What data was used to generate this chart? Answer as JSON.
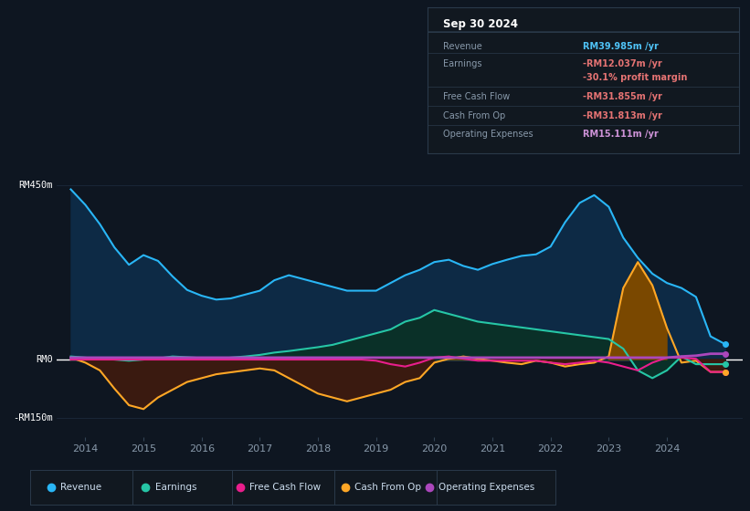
{
  "bg_color": "#0e1621",
  "plot_bg_color": "#0e1621",
  "grid_color": "#1e2d40",
  "ylim": [
    -200,
    520
  ],
  "yticks": [
    -150,
    0,
    450
  ],
  "ytick_labels": [
    "-RM150m",
    "RM0",
    "RM450m"
  ],
  "xlim_start": 2013.5,
  "xlim_end": 2025.3,
  "xticks": [
    2014,
    2015,
    2016,
    2017,
    2018,
    2019,
    2020,
    2021,
    2022,
    2023,
    2024
  ],
  "legend_items": [
    {
      "label": "Revenue",
      "color": "#29b6f6"
    },
    {
      "label": "Earnings",
      "color": "#26c6a6"
    },
    {
      "label": "Free Cash Flow",
      "color": "#e91e8c"
    },
    {
      "label": "Cash From Op",
      "color": "#ffa726"
    },
    {
      "label": "Operating Expenses",
      "color": "#ab47bc"
    }
  ],
  "info_box": {
    "date": "Sep 30 2024",
    "rows": [
      {
        "label": "Revenue",
        "value": "RM39.985m /yr",
        "value_color": "#4fc3f7"
      },
      {
        "label": "Earnings",
        "value": "-RM12.037m /yr",
        "value_color": "#e57373"
      },
      {
        "label": "",
        "value": "-30.1% profit margin",
        "value_color": "#e57373"
      },
      {
        "label": "Free Cash Flow",
        "value": "-RM31.855m /yr",
        "value_color": "#e57373"
      },
      {
        "label": "Cash From Op",
        "value": "-RM31.813m /yr",
        "value_color": "#e57373"
      },
      {
        "label": "Operating Expenses",
        "value": "RM15.111m /yr",
        "value_color": "#ce93d8"
      }
    ]
  },
  "revenue_x": [
    2013.75,
    2014.0,
    2014.25,
    2014.5,
    2014.75,
    2015.0,
    2015.25,
    2015.5,
    2015.75,
    2016.0,
    2016.25,
    2016.5,
    2016.75,
    2017.0,
    2017.25,
    2017.5,
    2017.75,
    2018.0,
    2018.25,
    2018.5,
    2018.75,
    2019.0,
    2019.25,
    2019.5,
    2019.75,
    2020.0,
    2020.25,
    2020.5,
    2020.75,
    2021.0,
    2021.25,
    2021.5,
    2021.75,
    2022.0,
    2022.25,
    2022.5,
    2022.75,
    2023.0,
    2023.25,
    2023.5,
    2023.75,
    2024.0,
    2024.25,
    2024.5,
    2024.75,
    2025.0
  ],
  "revenue_y": [
    440,
    400,
    350,
    290,
    245,
    270,
    255,
    215,
    180,
    165,
    155,
    158,
    168,
    178,
    205,
    218,
    208,
    198,
    188,
    178,
    178,
    178,
    198,
    218,
    232,
    252,
    258,
    242,
    232,
    247,
    258,
    268,
    272,
    292,
    355,
    405,
    425,
    395,
    315,
    263,
    222,
    198,
    185,
    162,
    60,
    40
  ],
  "earnings_x": [
    2013.75,
    2014.0,
    2014.25,
    2014.5,
    2014.75,
    2015.0,
    2015.25,
    2015.5,
    2015.75,
    2016.0,
    2016.25,
    2016.5,
    2016.75,
    2017.0,
    2017.25,
    2017.5,
    2017.75,
    2018.0,
    2018.25,
    2018.5,
    2018.75,
    2019.0,
    2019.25,
    2019.5,
    2019.75,
    2020.0,
    2020.25,
    2020.5,
    2020.75,
    2021.0,
    2021.25,
    2021.5,
    2021.75,
    2022.0,
    2022.25,
    2022.5,
    2022.75,
    2023.0,
    2023.25,
    2023.5,
    2023.75,
    2024.0,
    2024.25,
    2024.5,
    2024.75,
    2025.0
  ],
  "earnings_y": [
    8,
    5,
    2,
    0,
    -3,
    0,
    3,
    8,
    6,
    4,
    2,
    5,
    8,
    12,
    18,
    22,
    27,
    32,
    38,
    48,
    58,
    68,
    78,
    98,
    108,
    128,
    118,
    108,
    98,
    93,
    88,
    83,
    78,
    73,
    68,
    63,
    58,
    53,
    28,
    -28,
    -48,
    -28,
    8,
    -12,
    -12,
    -12
  ],
  "cfo_x": [
    2013.75,
    2014.0,
    2014.25,
    2014.5,
    2014.75,
    2015.0,
    2015.25,
    2015.5,
    2015.75,
    2016.0,
    2016.25,
    2016.5,
    2016.75,
    2017.0,
    2017.25,
    2017.5,
    2017.75,
    2018.0,
    2018.25,
    2018.5,
    2018.75,
    2019.0,
    2019.25,
    2019.5,
    2019.75,
    2020.0,
    2020.25,
    2020.5,
    2020.75,
    2021.0,
    2021.25,
    2021.5,
    2021.75,
    2022.0,
    2022.25,
    2022.5,
    2022.75,
    2023.0,
    2023.25,
    2023.5,
    2023.75,
    2024.0,
    2024.25,
    2024.5,
    2024.75,
    2025.0
  ],
  "cfo_y": [
    5,
    -8,
    -28,
    -75,
    -118,
    -128,
    -98,
    -78,
    -58,
    -48,
    -38,
    -33,
    -28,
    -23,
    -28,
    -48,
    -68,
    -88,
    -98,
    -108,
    -98,
    -88,
    -78,
    -58,
    -48,
    -8,
    2,
    8,
    2,
    -3,
    -8,
    -12,
    -3,
    -8,
    -18,
    -12,
    -8,
    8,
    185,
    252,
    192,
    82,
    -8,
    -3,
    -32,
    -32
  ],
  "fcf_x": [
    2013.75,
    2014.0,
    2014.25,
    2014.5,
    2014.75,
    2015.0,
    2015.25,
    2015.5,
    2015.75,
    2016.0,
    2016.25,
    2016.5,
    2016.75,
    2017.0,
    2017.25,
    2017.5,
    2017.75,
    2018.0,
    2018.25,
    2018.5,
    2018.75,
    2019.0,
    2019.25,
    2019.5,
    2019.75,
    2020.0,
    2020.25,
    2020.5,
    2020.75,
    2021.0,
    2021.25,
    2021.5,
    2021.75,
    2022.0,
    2022.25,
    2022.5,
    2022.75,
    2023.0,
    2023.25,
    2023.5,
    2023.75,
    2024.0,
    2024.25,
    2024.5,
    2024.75,
    2025.0
  ],
  "fcf_y": [
    0,
    0,
    0,
    0,
    0,
    0,
    0,
    0,
    0,
    0,
    0,
    0,
    0,
    0,
    0,
    0,
    0,
    0,
    0,
    0,
    0,
    -3,
    -12,
    -18,
    -8,
    5,
    8,
    2,
    -3,
    -3,
    -3,
    -3,
    -3,
    -8,
    -12,
    -8,
    -3,
    -8,
    -18,
    -28,
    -8,
    5,
    5,
    2,
    -32,
    -32
  ],
  "opex_x": [
    2013.75,
    2014.0,
    2014.25,
    2014.5,
    2014.75,
    2015.0,
    2015.25,
    2015.5,
    2015.75,
    2016.0,
    2016.25,
    2016.5,
    2016.75,
    2017.0,
    2017.25,
    2017.5,
    2017.75,
    2018.0,
    2018.25,
    2018.5,
    2018.75,
    2019.0,
    2019.25,
    2019.5,
    2019.75,
    2020.0,
    2020.25,
    2020.5,
    2020.75,
    2021.0,
    2021.25,
    2021.5,
    2021.75,
    2022.0,
    2022.25,
    2022.5,
    2022.75,
    2023.0,
    2023.25,
    2023.5,
    2023.75,
    2024.0,
    2024.25,
    2024.5,
    2024.75,
    2025.0
  ],
  "opex_y": [
    5,
    5,
    5,
    5,
    5,
    5,
    5,
    5,
    5,
    5,
    5,
    5,
    5,
    5,
    5,
    5,
    5,
    5,
    5,
    5,
    5,
    5,
    5,
    5,
    5,
    5,
    5,
    5,
    5,
    5,
    5,
    5,
    5,
    5,
    5,
    5,
    5,
    5,
    5,
    5,
    5,
    5,
    8,
    10,
    15,
    15
  ],
  "revenue_fill": "#0d2a45",
  "earnings_fill": "#0a3028",
  "cfo_fill_pos": "#7a4800",
  "cfo_fill_neg": "#3a1a10",
  "revenue_line": "#29b6f6",
  "earnings_line": "#26c6a6",
  "fcf_line": "#e91e8c",
  "cfo_line": "#ffa726",
  "opex_line": "#ab47bc"
}
